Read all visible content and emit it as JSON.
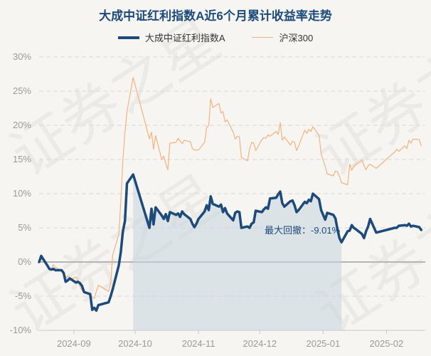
{
  "chart_data": {
    "type": "line",
    "title": "大成中证红利指数A近6个月累计收益率走势",
    "ylim": [
      -10,
      30
    ],
    "yticks": [
      30,
      25,
      20,
      15,
      10,
      5,
      0,
      -5,
      -10
    ],
    "ytick_labels": [
      "30%",
      "25%",
      "20%",
      "15%",
      "10%",
      "5%",
      "0%",
      "-5%",
      "-10%"
    ],
    "x_start": "2024-08-15",
    "x_end": "2025-02-20",
    "xticks": [
      "2024-09",
      "2024-10",
      "2024-11",
      "2024-12",
      "2025-01",
      "2025-02"
    ],
    "xtick_dates": [
      "2024-09-01",
      "2024-10-01",
      "2024-11-01",
      "2024-12-01",
      "2025-01-01",
      "2025-02-01"
    ],
    "grid": true,
    "legend_position": "top-center",
    "series": [
      {
        "name": "大成中证红利指数A",
        "color": "#1c4a7a",
        "width": 3.5,
        "points": [
          [
            "2024-08-15",
            0.0
          ],
          [
            "2024-08-16",
            0.9
          ],
          [
            "2024-08-19",
            -0.5
          ],
          [
            "2024-08-20",
            -1.0
          ],
          [
            "2024-08-21",
            -1.1
          ],
          [
            "2024-08-22",
            -1.0
          ],
          [
            "2024-08-23",
            -1.2
          ],
          [
            "2024-08-26",
            -1.2
          ],
          [
            "2024-08-27",
            -1.6
          ],
          [
            "2024-08-28",
            -2.9
          ],
          [
            "2024-08-29",
            -2.7
          ],
          [
            "2024-08-30",
            -2.4
          ],
          [
            "2024-09-02",
            -3.0
          ],
          [
            "2024-09-03",
            -2.9
          ],
          [
            "2024-09-04",
            -3.1
          ],
          [
            "2024-09-05",
            -3.5
          ],
          [
            "2024-09-06",
            -4.4
          ],
          [
            "2024-09-09",
            -4.7
          ],
          [
            "2024-09-10",
            -7.0
          ],
          [
            "2024-09-11",
            -6.7
          ],
          [
            "2024-09-12",
            -7.1
          ],
          [
            "2024-09-13",
            -6.3
          ],
          [
            "2024-09-18",
            -5.9
          ],
          [
            "2024-09-19",
            -5.0
          ],
          [
            "2024-09-20",
            -4.0
          ],
          [
            "2024-09-23",
            -0.5
          ],
          [
            "2024-09-24",
            1.5
          ],
          [
            "2024-09-25",
            4.5
          ],
          [
            "2024-09-26",
            6.0
          ],
          [
            "2024-09-27",
            11.5
          ],
          [
            "2024-09-30",
            12.8
          ],
          [
            "2024-10-08",
            5.0
          ],
          [
            "2024-10-09",
            7.8
          ],
          [
            "2024-10-10",
            5.5
          ],
          [
            "2024-10-11",
            8.0
          ],
          [
            "2024-10-14",
            6.8
          ],
          [
            "2024-10-15",
            6.3
          ],
          [
            "2024-10-16",
            7.0
          ],
          [
            "2024-10-17",
            6.0
          ],
          [
            "2024-10-18",
            7.3
          ],
          [
            "2024-10-21",
            6.9
          ],
          [
            "2024-10-22",
            7.1
          ],
          [
            "2024-10-23",
            6.6
          ],
          [
            "2024-10-24",
            7.4
          ],
          [
            "2024-10-25",
            7.0
          ],
          [
            "2024-10-28",
            6.3
          ],
          [
            "2024-10-29",
            5.6
          ],
          [
            "2024-10-30",
            5.1
          ],
          [
            "2024-10-31",
            5.6
          ],
          [
            "2024-11-01",
            6.3
          ],
          [
            "2024-11-04",
            7.4
          ],
          [
            "2024-11-05",
            8.3
          ],
          [
            "2024-11-06",
            7.6
          ],
          [
            "2024-11-07",
            9.6
          ],
          [
            "2024-11-08",
            8.5
          ],
          [
            "2024-11-11",
            8.1
          ],
          [
            "2024-11-12",
            8.4
          ],
          [
            "2024-11-13",
            7.3
          ],
          [
            "2024-11-14",
            7.9
          ],
          [
            "2024-11-15",
            7.1
          ],
          [
            "2024-11-18",
            6.1
          ],
          [
            "2024-11-19",
            7.2
          ],
          [
            "2024-11-20",
            7.4
          ],
          [
            "2024-11-21",
            7.3
          ],
          [
            "2024-11-22",
            5.0
          ],
          [
            "2024-11-25",
            5.2
          ],
          [
            "2024-11-26",
            5.0
          ],
          [
            "2024-11-27",
            5.6
          ],
          [
            "2024-11-28",
            5.8
          ],
          [
            "2024-11-29",
            7.5
          ],
          [
            "2024-12-02",
            7.3
          ],
          [
            "2024-12-03",
            7.7
          ],
          [
            "2024-12-04",
            8.0
          ],
          [
            "2024-12-05",
            7.8
          ],
          [
            "2024-12-06",
            9.3
          ],
          [
            "2024-12-09",
            9.4
          ],
          [
            "2024-12-10",
            9.9
          ],
          [
            "2024-12-11",
            10.3
          ],
          [
            "2024-12-12",
            8.6
          ],
          [
            "2024-12-13",
            8.1
          ],
          [
            "2024-12-16",
            8.9
          ],
          [
            "2024-12-17",
            9.0
          ],
          [
            "2024-12-18",
            8.3
          ],
          [
            "2024-12-19",
            7.3
          ],
          [
            "2024-12-20",
            7.6
          ],
          [
            "2024-12-23",
            8.8
          ],
          [
            "2024-12-24",
            8.6
          ],
          [
            "2024-12-25",
            9.1
          ],
          [
            "2024-12-26",
            8.9
          ],
          [
            "2024-12-27",
            10.0
          ],
          [
            "2024-12-30",
            9.2
          ],
          [
            "2024-12-31",
            7.6
          ],
          [
            "2025-01-02",
            6.2
          ],
          [
            "2025-01-03",
            7.2
          ],
          [
            "2025-01-06",
            6.9
          ],
          [
            "2025-01-07",
            6.4
          ],
          [
            "2025-01-08",
            4.8
          ],
          [
            "2025-01-09",
            3.5
          ],
          [
            "2025-01-10",
            2.9
          ],
          [
            "2025-01-13",
            4.5
          ],
          [
            "2025-01-14",
            4.6
          ],
          [
            "2025-01-15",
            5.4
          ],
          [
            "2025-01-16",
            5.0
          ],
          [
            "2025-01-17",
            4.8
          ],
          [
            "2025-01-20",
            4.1
          ],
          [
            "2025-01-21",
            3.5
          ],
          [
            "2025-01-22",
            4.5
          ],
          [
            "2025-01-23",
            5.2
          ],
          [
            "2025-01-24",
            6.3
          ],
          [
            "2025-01-27",
            4.3
          ],
          [
            "2025-02-05",
            5.0
          ],
          [
            "2025-02-06",
            5.0
          ],
          [
            "2025-02-07",
            5.3
          ],
          [
            "2025-02-10",
            5.4
          ],
          [
            "2025-02-11",
            5.3
          ],
          [
            "2025-02-12",
            5.6
          ],
          [
            "2025-02-13",
            5.2
          ],
          [
            "2025-02-14",
            5.3
          ],
          [
            "2025-02-17",
            5.1
          ],
          [
            "2025-02-18",
            4.7
          ]
        ]
      },
      {
        "name": "沪深300",
        "color": "#f4b27c",
        "width": 1.2,
        "points": [
          [
            "2024-08-15",
            0.0
          ],
          [
            "2024-08-16",
            0.5
          ],
          [
            "2024-08-19",
            -0.5
          ],
          [
            "2024-08-20",
            -1.2
          ],
          [
            "2024-08-21",
            -1.0
          ],
          [
            "2024-08-22",
            -0.4
          ],
          [
            "2024-08-23",
            -0.8
          ],
          [
            "2024-08-26",
            -1.2
          ],
          [
            "2024-08-27",
            -1.6
          ],
          [
            "2024-08-28",
            -2.4
          ],
          [
            "2024-08-29",
            -2.0
          ],
          [
            "2024-08-30",
            -2.6
          ],
          [
            "2024-09-02",
            -2.2
          ],
          [
            "2024-09-03",
            -2.6
          ],
          [
            "2024-09-04",
            -3.6
          ],
          [
            "2024-09-05",
            -4.2
          ],
          [
            "2024-09-06",
            -4.4
          ],
          [
            "2024-09-09",
            -4.8
          ],
          [
            "2024-09-10",
            -5.2
          ],
          [
            "2024-09-11",
            -5.3
          ],
          [
            "2024-09-12",
            -4.3
          ],
          [
            "2024-09-13",
            -3.4
          ],
          [
            "2024-09-18",
            -4.3
          ],
          [
            "2024-09-19",
            -3.2
          ],
          [
            "2024-09-20",
            1.0
          ],
          [
            "2024-09-23",
            4.0
          ],
          [
            "2024-09-24",
            9.0
          ],
          [
            "2024-09-25",
            15.0
          ],
          [
            "2024-09-26",
            19.0
          ],
          [
            "2024-09-27",
            22.0
          ],
          [
            "2024-09-30",
            27.0
          ],
          [
            "2024-10-08",
            18.0
          ],
          [
            "2024-10-09",
            19.0
          ],
          [
            "2024-10-10",
            16.5
          ],
          [
            "2024-10-11",
            18.5
          ],
          [
            "2024-10-14",
            15.0
          ],
          [
            "2024-10-15",
            15.5
          ],
          [
            "2024-10-16",
            14.4
          ],
          [
            "2024-10-17",
            13.5
          ],
          [
            "2024-10-18",
            17.4
          ],
          [
            "2024-10-21",
            17.5
          ],
          [
            "2024-10-22",
            18.1
          ],
          [
            "2024-10-23",
            17.7
          ],
          [
            "2024-10-24",
            17.3
          ],
          [
            "2024-10-25",
            17.8
          ],
          [
            "2024-10-28",
            17.6
          ],
          [
            "2024-10-29",
            16.6
          ],
          [
            "2024-10-30",
            16.4
          ],
          [
            "2024-10-31",
            16.4
          ],
          [
            "2024-11-01",
            16.4
          ],
          [
            "2024-11-04",
            17.5
          ],
          [
            "2024-11-05",
            19.7
          ],
          [
            "2024-11-06",
            20.0
          ],
          [
            "2024-11-07",
            23.9
          ],
          [
            "2024-11-08",
            22.6
          ],
          [
            "2024-11-11",
            23.2
          ],
          [
            "2024-11-12",
            21.8
          ],
          [
            "2024-11-13",
            22.0
          ],
          [
            "2024-11-14",
            20.5
          ],
          [
            "2024-11-15",
            20.8
          ],
          [
            "2024-11-18",
            19.0
          ],
          [
            "2024-11-19",
            18.0
          ],
          [
            "2024-11-20",
            18.4
          ],
          [
            "2024-11-21",
            18.3
          ],
          [
            "2024-11-22",
            15.3
          ],
          [
            "2024-11-25",
            14.8
          ],
          [
            "2024-11-26",
            16.5
          ],
          [
            "2024-11-27",
            17.5
          ],
          [
            "2024-11-28",
            17.4
          ],
          [
            "2024-11-29",
            16.3
          ],
          [
            "2024-12-02",
            17.9
          ],
          [
            "2024-12-03",
            18.2
          ],
          [
            "2024-12-04",
            18.1
          ],
          [
            "2024-12-05",
            18.6
          ],
          [
            "2024-12-06",
            18.4
          ],
          [
            "2024-12-09",
            19.1
          ],
          [
            "2024-12-10",
            18.7
          ],
          [
            "2024-12-11",
            20.4
          ],
          [
            "2024-12-12",
            17.8
          ],
          [
            "2024-12-13",
            18.3
          ],
          [
            "2024-12-16",
            17.1
          ],
          [
            "2024-12-17",
            17.7
          ],
          [
            "2024-12-18",
            17.5
          ],
          [
            "2024-12-19",
            16.3
          ],
          [
            "2024-12-20",
            17.0
          ],
          [
            "2024-12-23",
            19.3
          ],
          [
            "2024-12-24",
            18.8
          ],
          [
            "2024-12-25",
            19.4
          ],
          [
            "2024-12-26",
            19.1
          ],
          [
            "2024-12-27",
            19.8
          ],
          [
            "2024-12-30",
            18.5
          ],
          [
            "2024-12-31",
            15.8
          ],
          [
            "2025-01-02",
            14.0
          ],
          [
            "2025-01-03",
            12.9
          ],
          [
            "2025-01-06",
            12.6
          ],
          [
            "2025-01-07",
            13.3
          ],
          [
            "2025-01-08",
            13.2
          ],
          [
            "2025-01-09",
            12.5
          ],
          [
            "2025-01-10",
            11.6
          ],
          [
            "2025-01-13",
            11.3
          ],
          [
            "2025-01-14",
            14.3
          ],
          [
            "2025-01-15",
            13.4
          ],
          [
            "2025-01-16",
            14.0
          ],
          [
            "2025-01-17",
            14.3
          ],
          [
            "2025-01-20",
            14.9
          ],
          [
            "2025-01-21",
            14.1
          ],
          [
            "2025-01-22",
            13.5
          ],
          [
            "2025-01-23",
            14.1
          ],
          [
            "2025-01-24",
            14.3
          ],
          [
            "2025-01-27",
            13.7
          ],
          [
            "2025-02-05",
            16.1
          ],
          [
            "2025-02-06",
            16.5
          ],
          [
            "2025-02-07",
            16.2
          ],
          [
            "2025-02-10",
            17.0
          ],
          [
            "2025-02-11",
            16.6
          ],
          [
            "2025-02-12",
            17.8
          ],
          [
            "2025-02-13",
            17.4
          ],
          [
            "2025-02-14",
            18.0
          ],
          [
            "2025-02-17",
            17.9
          ],
          [
            "2025-02-18",
            17.0
          ]
        ]
      }
    ],
    "max_drawdown": {
      "label": "最大回撤：-9.01%",
      "start": "2024-09-30",
      "end": "2025-01-10",
      "fill_color": "#c6d3de"
    }
  }
}
